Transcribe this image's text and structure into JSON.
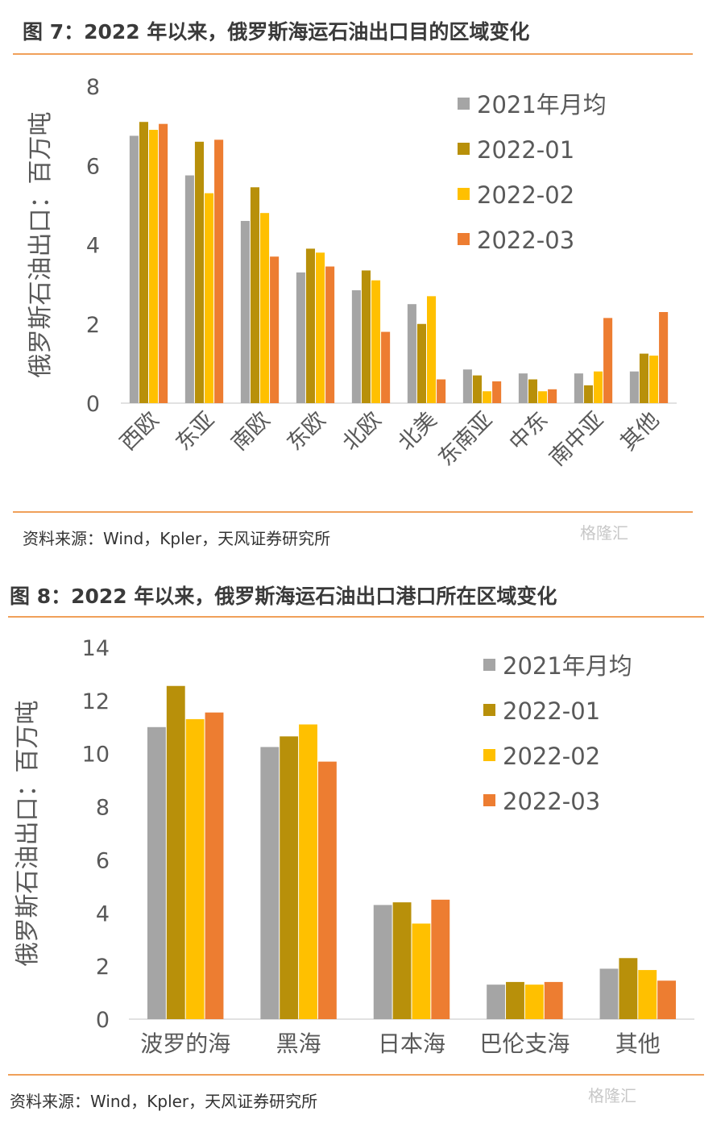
{
  "colors": {
    "accent_rule": "#f0a05a",
    "series": [
      "#a5a5a5",
      "#b8900a",
      "#ffc000",
      "#ed7d31"
    ]
  },
  "figures": [
    {
      "title": "图 7：2022 年以来，俄罗斯海运石油出口目的区域变化",
      "source": "资料来源：Wind，Kpler，天风证券研究所",
      "watermark": "格隆汇"
    },
    {
      "title": "图 8：2022 年以来，俄罗斯海运石油出口港口所在区域变化",
      "source": "资料来源：Wind，Kpler，天风证券研究所",
      "watermark": "格隆汇"
    }
  ],
  "chart_data": [
    {
      "type": "bar",
      "ylabel": "俄罗斯石油出口：百万吨",
      "ylim": [
        0,
        8
      ],
      "yticks": [
        0,
        2,
        4,
        6,
        8
      ],
      "grid": false,
      "legend_position": "top-right",
      "categories": [
        "西欧",
        "东亚",
        "南欧",
        "东欧",
        "北欧",
        "北美",
        "东南亚",
        "中东",
        "南中亚",
        "其他"
      ],
      "series": [
        {
          "name": "2021年月均",
          "values": [
            6.75,
            5.75,
            4.6,
            3.3,
            2.85,
            2.5,
            0.85,
            0.75,
            0.75,
            0.8
          ]
        },
        {
          "name": "2022-01",
          "values": [
            7.1,
            6.6,
            5.45,
            3.9,
            3.35,
            2.0,
            0.7,
            0.6,
            0.45,
            1.25
          ]
        },
        {
          "name": "2022-02",
          "values": [
            6.9,
            5.3,
            4.8,
            3.8,
            3.1,
            2.7,
            0.3,
            0.3,
            0.8,
            1.2
          ]
        },
        {
          "name": "2022-03",
          "values": [
            7.05,
            6.65,
            3.7,
            3.45,
            1.8,
            0.6,
            0.55,
            0.35,
            2.15,
            2.3
          ]
        }
      ]
    },
    {
      "type": "bar",
      "ylabel": "俄罗斯石油出口：百万吨",
      "ylim": [
        0,
        14
      ],
      "yticks": [
        0,
        2,
        4,
        6,
        8,
        10,
        12,
        14
      ],
      "grid": false,
      "legend_position": "top-right",
      "categories": [
        "波罗的海",
        "黑海",
        "日本海",
        "巴伦支海",
        "其他"
      ],
      "series": [
        {
          "name": "2021年月均",
          "values": [
            11.0,
            10.25,
            4.3,
            1.3,
            1.9
          ]
        },
        {
          "name": "2022-01",
          "values": [
            12.55,
            10.65,
            4.4,
            1.4,
            2.3
          ]
        },
        {
          "name": "2022-02",
          "values": [
            11.3,
            11.1,
            3.6,
            1.3,
            1.85
          ]
        },
        {
          "name": "2022-03",
          "values": [
            11.55,
            9.7,
            4.5,
            1.4,
            1.45
          ]
        }
      ]
    }
  ]
}
